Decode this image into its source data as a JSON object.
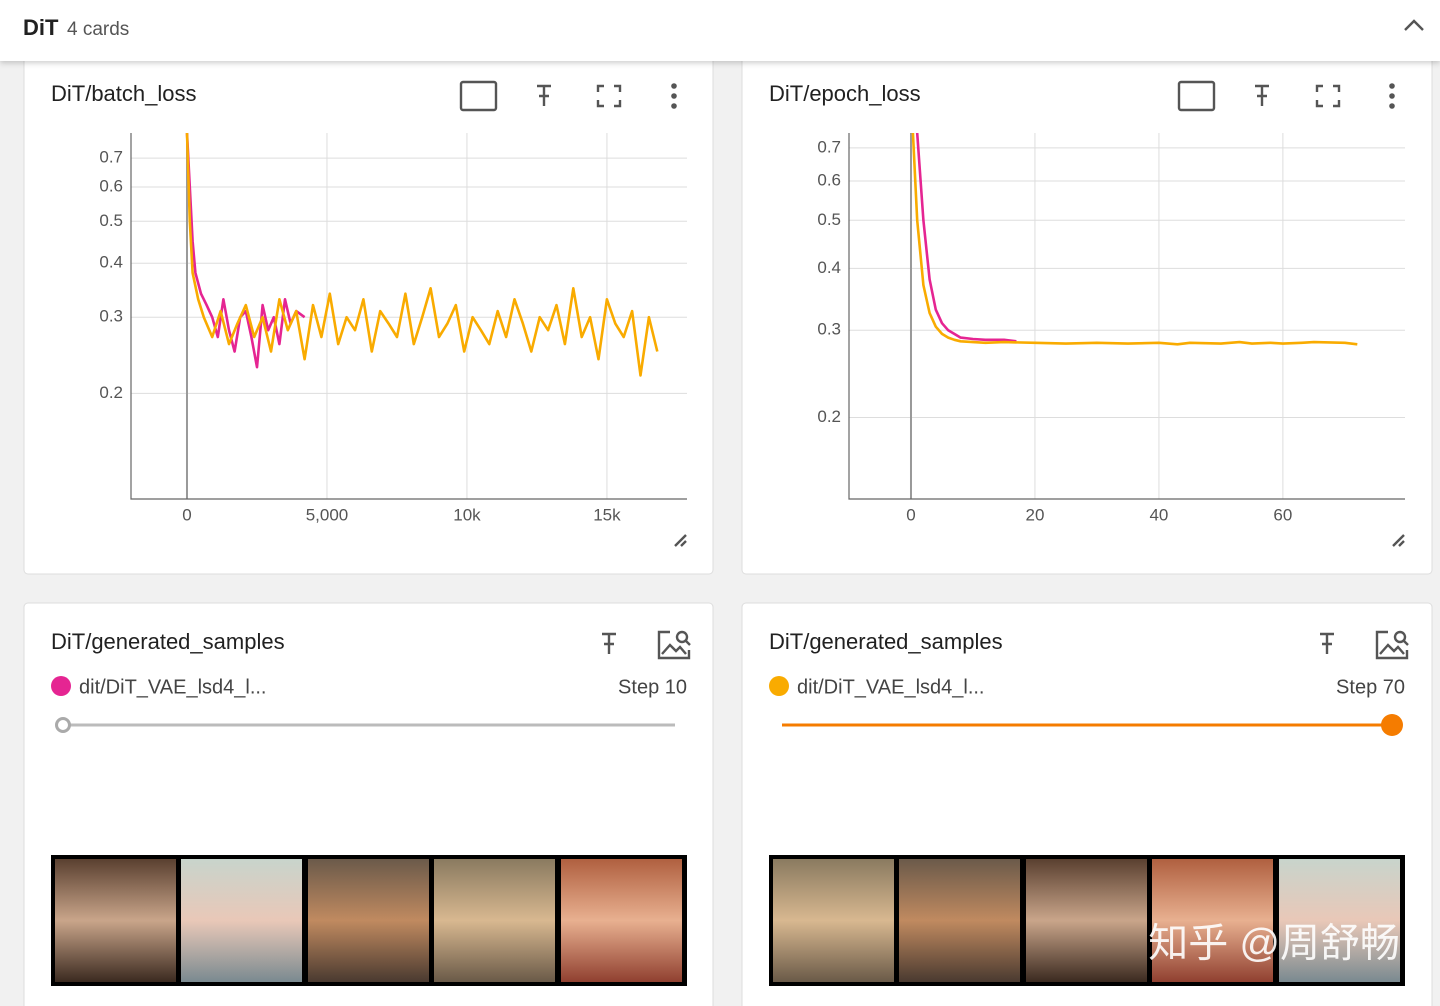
{
  "header": {
    "title": "DiT",
    "subtitle": "4 cards"
  },
  "chart_data": [
    {
      "type": "line",
      "title": "DiT/batch_loss",
      "log_y": true,
      "grid": true,
      "xlim": [
        -2000,
        17860
      ],
      "ylim": [
        0.114,
        0.8
      ],
      "xticks": [
        0,
        {
          "value": 5000,
          "label": "5,000"
        },
        {
          "value": 10000,
          "label": "10k"
        },
        {
          "value": 15000,
          "label": "15k"
        }
      ],
      "yticks": [
        0.2,
        0.3,
        0.4,
        0.5,
        0.6,
        0.7
      ],
      "series": [
        {
          "color": "#e52592",
          "x": [
            0,
            100,
            200,
            300,
            500,
            700,
            900,
            1100,
            1300,
            1500,
            1700,
            1900,
            2100,
            2300,
            2500,
            2700,
            2900,
            3100,
            3300,
            3500,
            3700,
            3900,
            4200
          ],
          "values": [
            0.8,
            0.6,
            0.45,
            0.38,
            0.34,
            0.32,
            0.3,
            0.27,
            0.33,
            0.28,
            0.25,
            0.3,
            0.31,
            0.27,
            0.23,
            0.32,
            0.28,
            0.3,
            0.26,
            0.33,
            0.29,
            0.31,
            0.3
          ]
        },
        {
          "color": "#f9ab00",
          "x": [
            0,
            100,
            200,
            400,
            600,
            900,
            1200,
            1500,
            1800,
            2100,
            2400,
            2700,
            3000,
            3300,
            3600,
            3900,
            4200,
            4500,
            4800,
            5100,
            5400,
            5700,
            6000,
            6300,
            6600,
            6900,
            7200,
            7500,
            7800,
            8100,
            8400,
            8700,
            9000,
            9300,
            9600,
            9900,
            10200,
            10500,
            10800,
            11100,
            11400,
            11700,
            12000,
            12300,
            12600,
            12900,
            13200,
            13500,
            13800,
            14100,
            14400,
            14700,
            15000,
            15300,
            15600,
            15900,
            16200,
            16500,
            16800
          ],
          "values": [
            0.8,
            0.5,
            0.38,
            0.33,
            0.3,
            0.27,
            0.31,
            0.26,
            0.29,
            0.32,
            0.27,
            0.3,
            0.25,
            0.33,
            0.28,
            0.31,
            0.24,
            0.32,
            0.27,
            0.34,
            0.26,
            0.3,
            0.28,
            0.33,
            0.25,
            0.31,
            0.29,
            0.27,
            0.34,
            0.26,
            0.3,
            0.35,
            0.27,
            0.29,
            0.32,
            0.25,
            0.3,
            0.28,
            0.26,
            0.31,
            0.27,
            0.33,
            0.29,
            0.25,
            0.3,
            0.28,
            0.32,
            0.26,
            0.35,
            0.27,
            0.3,
            0.24,
            0.33,
            0.29,
            0.27,
            0.31,
            0.22,
            0.3,
            0.25
          ]
        }
      ]
    },
    {
      "type": "line",
      "title": "DiT/epoch_loss",
      "log_y": true,
      "grid": true,
      "xlim": [
        -10,
        79.7
      ],
      "ylim": [
        0.137,
        0.75
      ],
      "xticks": [
        0,
        20,
        40,
        60
      ],
      "yticks": [
        0.2,
        0.3,
        0.4,
        0.5,
        0.6,
        0.7
      ],
      "series": [
        {
          "color": "#e52592",
          "x": [
            0,
            1,
            2,
            3,
            4,
            5,
            6,
            8,
            10,
            12,
            15,
            17
          ],
          "values": [
            1.2,
            0.75,
            0.5,
            0.38,
            0.33,
            0.31,
            0.3,
            0.29,
            0.288,
            0.287,
            0.287,
            0.285
          ]
        },
        {
          "color": "#f9ab00",
          "x": [
            0,
            1,
            2,
            3,
            4,
            5,
            6,
            7,
            8,
            10,
            12,
            15,
            20,
            25,
            30,
            35,
            40,
            43,
            45,
            50,
            53,
            55,
            58,
            60,
            63,
            65,
            70,
            72
          ],
          "values": [
            0.9,
            0.5,
            0.37,
            0.325,
            0.305,
            0.295,
            0.29,
            0.287,
            0.285,
            0.284,
            0.283,
            0.284,
            0.283,
            0.282,
            0.283,
            0.282,
            0.283,
            0.281,
            0.283,
            0.282,
            0.284,
            0.282,
            0.283,
            0.282,
            0.283,
            0.284,
            0.283,
            0.281
          ]
        }
      ]
    }
  ],
  "image_cards": [
    {
      "title": "DiT/generated_samples",
      "run": "dit/DiT_VAE_lsd4_l...",
      "color": "#e52592",
      "step": "Step 10"
    },
    {
      "title": "DiT/generated_samples",
      "run": "dit/DiT_VAE_lsd4_l...",
      "color": "#f9ab00",
      "step": "Step 70"
    }
  ],
  "watermark": "知乎 @周舒畅"
}
